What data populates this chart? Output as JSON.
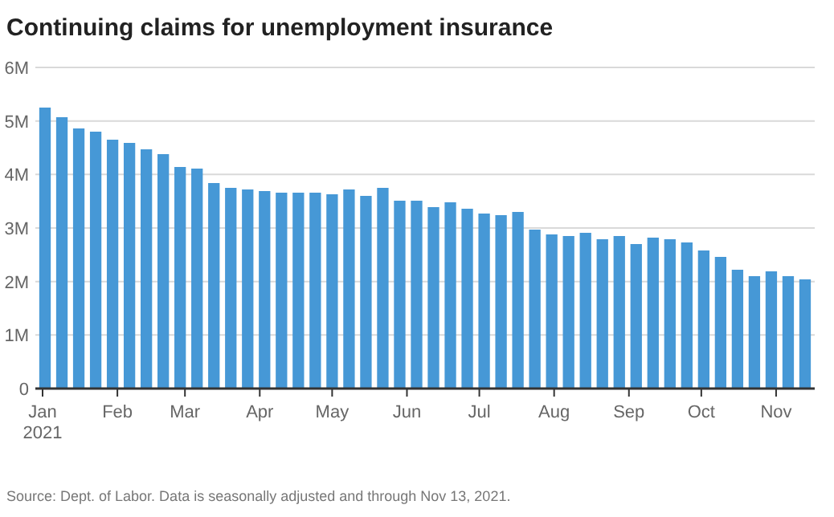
{
  "chart_data": {
    "type": "bar",
    "title": "Continuing claims for unemployment insurance",
    "x": [
      "2021-01-02",
      "2021-01-09",
      "2021-01-16",
      "2021-01-23",
      "2021-01-30",
      "2021-02-06",
      "2021-02-13",
      "2021-02-20",
      "2021-02-27",
      "2021-03-06",
      "2021-03-13",
      "2021-03-20",
      "2021-03-27",
      "2021-04-03",
      "2021-04-10",
      "2021-04-17",
      "2021-04-24",
      "2021-05-01",
      "2021-05-08",
      "2021-05-15",
      "2021-05-22",
      "2021-05-29",
      "2021-06-05",
      "2021-06-12",
      "2021-06-19",
      "2021-06-26",
      "2021-07-03",
      "2021-07-10",
      "2021-07-17",
      "2021-07-24",
      "2021-07-31",
      "2021-08-07",
      "2021-08-14",
      "2021-08-21",
      "2021-08-28",
      "2021-09-04",
      "2021-09-11",
      "2021-09-18",
      "2021-09-25",
      "2021-10-02",
      "2021-10-09",
      "2021-10-16",
      "2021-10-23",
      "2021-10-30",
      "2021-11-06",
      "2021-11-13"
    ],
    "values": [
      5.25,
      5.07,
      4.86,
      4.8,
      4.65,
      4.59,
      4.47,
      4.38,
      4.14,
      4.11,
      3.84,
      3.75,
      3.72,
      3.69,
      3.66,
      3.66,
      3.66,
      3.63,
      3.72,
      3.6,
      3.75,
      3.51,
      3.51,
      3.39,
      3.48,
      3.36,
      3.27,
      3.24,
      3.3,
      2.97,
      2.88,
      2.85,
      2.91,
      2.79,
      2.85,
      2.7,
      2.82,
      2.79,
      2.73,
      2.58,
      2.46,
      2.22,
      2.1,
      2.19,
      2.1,
      2.04
    ],
    "color": "#4698d6",
    "xlim": [
      "2020-12-29",
      "2021-11-17"
    ],
    "xticks": [
      {
        "value": "2021-01-01",
        "label": "Jan\n2021"
      },
      {
        "value": "2021-02-01",
        "label": "Feb"
      },
      {
        "value": "2021-03-01",
        "label": "Mar"
      },
      {
        "value": "2021-04-01",
        "label": "Apr"
      },
      {
        "value": "2021-05-01",
        "label": "May"
      },
      {
        "value": "2021-06-01",
        "label": "Jun"
      },
      {
        "value": "2021-07-01",
        "label": "Jul"
      },
      {
        "value": "2021-08-01",
        "label": "Aug"
      },
      {
        "value": "2021-09-01",
        "label": "Sep"
      },
      {
        "value": "2021-10-01",
        "label": "Oct"
      },
      {
        "value": "2021-11-01",
        "label": "Nov"
      }
    ],
    "ylim": [
      0,
      6
    ],
    "yticks": [
      {
        "value": 0,
        "label": "0"
      },
      {
        "value": 1,
        "label": "1M"
      },
      {
        "value": 2,
        "label": "2M"
      },
      {
        "value": 3,
        "label": "3M"
      },
      {
        "value": 4,
        "label": "4M"
      },
      {
        "value": 5,
        "label": "5M"
      },
      {
        "value": 6,
        "label": "6M"
      }
    ],
    "grid": "y",
    "annotations": [
      "Source: Dept. of Labor. Data is seasonally adjusted and through Nov 13, 2021."
    ]
  }
}
